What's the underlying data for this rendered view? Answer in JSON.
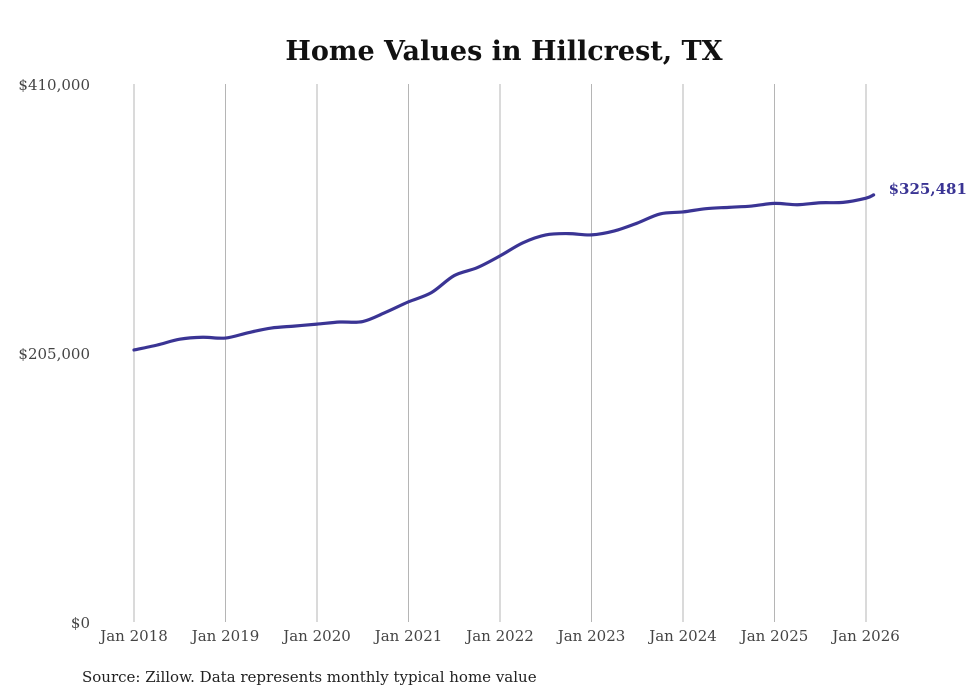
{
  "chart_data": {
    "type": "line",
    "title": "Home Values in Hillcrest, TX",
    "xlabel": "",
    "ylabel": "",
    "ylim": [
      0,
      410000
    ],
    "yticks": [
      0,
      205000,
      410000
    ],
    "ytick_labels": [
      "$0",
      "$205,000",
      "$410,000"
    ],
    "xtick_labels": [
      "Jan 2018",
      "Jan 2019",
      "Jan 2020",
      "Jan 2021",
      "Jan 2022",
      "Jan 2023",
      "Jan 2024",
      "Jan 2025",
      "Jan 2026"
    ],
    "xlim": [
      2018.0,
      2026.0
    ],
    "grid": "vertical",
    "line_color": "#3a3494",
    "end_label": "$325,481",
    "series": [
      {
        "name": "Typical home value",
        "x": [
          2018.0,
          2018.25,
          2018.5,
          2018.75,
          2019.0,
          2019.25,
          2019.5,
          2019.75,
          2020.0,
          2020.25,
          2020.5,
          2020.75,
          2021.0,
          2021.25,
          2021.5,
          2021.75,
          2022.0,
          2022.25,
          2022.5,
          2022.75,
          2023.0,
          2023.25,
          2023.5,
          2023.75,
          2024.0,
          2024.25,
          2024.5,
          2024.75,
          2025.0,
          2025.25,
          2025.5,
          2025.75,
          2026.0,
          2026.083
        ],
        "values": [
          207300,
          211000,
          215500,
          217000,
          216400,
          220500,
          224000,
          225500,
          227000,
          228600,
          229000,
          236000,
          244000,
          251000,
          264000,
          270000,
          279000,
          289000,
          295000,
          296000,
          295000,
          298000,
          304000,
          311000,
          312500,
          315000,
          316000,
          317000,
          319000,
          318000,
          319500,
          319800,
          323000,
          325481
        ]
      }
    ]
  },
  "source": "Source: Zillow. Data represents monthly typical home value"
}
